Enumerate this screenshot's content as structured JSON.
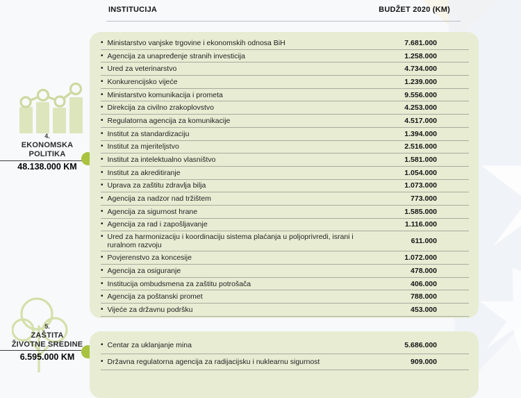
{
  "header": {
    "col_institution": "INSTITUCIJA",
    "col_budget": "BUDŽET 2020 (KM)"
  },
  "sections": [
    {
      "number": "4.",
      "name_lines": [
        "EKONOMSKA",
        "POLITIKA"
      ],
      "total": "48.138.000 KM",
      "icon": "bar-chart-growth-icon",
      "rows": [
        {
          "name": "Ministarstvo vanjske trgovine i ekonomskih odnosa BiH",
          "value": "7.681.000"
        },
        {
          "name": "Agencija za unapređenje stranih investicija",
          "value": "1.258.000"
        },
        {
          "name": "Ured za veterinarstvo",
          "value": "4.734.000"
        },
        {
          "name": "Konkurencijsko vijeće",
          "value": "1.239.000"
        },
        {
          "name": "Ministarstvo komunikacija i prometa",
          "value": "9.556.000"
        },
        {
          "name": "Direkcija za civilno zrakoplovstvo",
          "value": "4.253.000"
        },
        {
          "name": "Regulatorna agencija za komunikacije",
          "value": "4.517.000"
        },
        {
          "name": "Institut za standardizaciju",
          "value": "1.394.000"
        },
        {
          "name": "Institut za mjeriteljstvo",
          "value": "2.516.000"
        },
        {
          "name": "Institut za intelektualno vlasništvo",
          "value": "1.581.000"
        },
        {
          "name": "Institut za akreditiranje",
          "value": "1.054.000"
        },
        {
          "name": "Uprava za zaštitu zdravlja bilja",
          "value": "1.073.000"
        },
        {
          "name": "Agencija za nadzor nad tržištem",
          "value": "773.000"
        },
        {
          "name": "Agencija za sigurnost hrane",
          "value": "1.585.000"
        },
        {
          "name": "Agencija za rad i zapošljavanje",
          "value": "1.116.000"
        },
        {
          "name": "Ured za harmonizaciju i koordinaciju sistema plaćanja u poljoprivredi, israni i ruralnom razvoju",
          "value": "611.000"
        },
        {
          "name": "Povjerenstvo za koncesije",
          "value": "1.072.000"
        },
        {
          "name": "Agencija za osiguranje",
          "value": "478.000"
        },
        {
          "name": "Institucija ombudsmena za zaštitu potrošača",
          "value": "406.000"
        },
        {
          "name": "Agencija za poštanski promet",
          "value": "788.000"
        },
        {
          "name": "Vijeće za državnu podršku",
          "value": "453.000"
        }
      ]
    },
    {
      "number": "5.",
      "name_lines": [
        "ZAŠTITA",
        "ŽIVOTNE SREDINE"
      ],
      "total": "6.595.000 KM",
      "icon": "tree-icon",
      "rows": [
        {
          "name": "Centar za uklanjanje mina",
          "value": "5.686.000"
        },
        {
          "name": "Državna regulatorna agencija za radijacijsku i nuklearnu sigurnost",
          "value": "909.000"
        }
      ]
    }
  ],
  "colors": {
    "panel_bg": "#e8ecd3",
    "accent_dot": "#a9c33f",
    "icon_green": "#ccd9a0",
    "row_line": "#a9ab9d"
  }
}
